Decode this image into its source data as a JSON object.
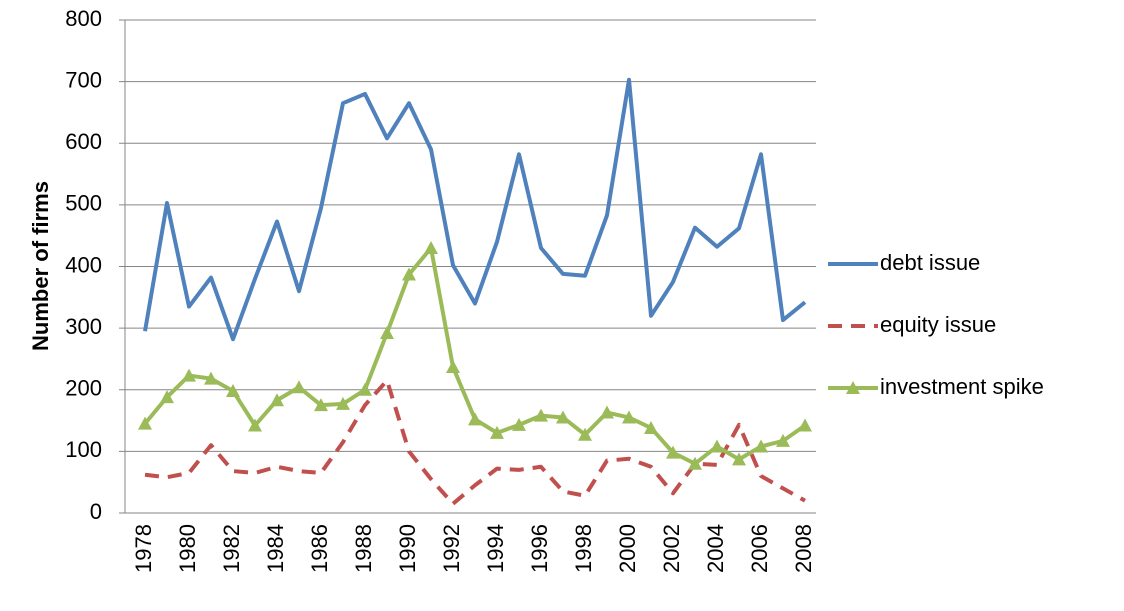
{
  "chart_data": {
    "type": "line",
    "y_label": "Number of firms",
    "x": [
      1978,
      1979,
      1980,
      1981,
      1982,
      1983,
      1984,
      1985,
      1986,
      1987,
      1988,
      1989,
      1990,
      1991,
      1992,
      1993,
      1994,
      1995,
      1996,
      1997,
      1998,
      1999,
      2000,
      2001,
      2002,
      2003,
      2004,
      2005,
      2006,
      2007,
      2008
    ],
    "xlim": [
      1977.5,
      2008.5
    ],
    "xticks": [
      1978,
      1980,
      1982,
      1984,
      1986,
      1988,
      1990,
      1992,
      1994,
      1996,
      1998,
      2000,
      2002,
      2004,
      2006,
      2008
    ],
    "ylim": [
      0,
      800
    ],
    "yticks": [
      0,
      100,
      200,
      300,
      400,
      500,
      600,
      700,
      800
    ],
    "grid": true,
    "series": [
      {
        "name": "debt issue",
        "color": "#4f81bd",
        "dash": false,
        "marker": false,
        "values": [
          295,
          503,
          335,
          382,
          282,
          380,
          473,
          360,
          495,
          665,
          680,
          608,
          665,
          590,
          402,
          340,
          440,
          582,
          430,
          388,
          385,
          483,
          703,
          320,
          375,
          463,
          432,
          462,
          582,
          313,
          342
        ]
      },
      {
        "name": "equity issue",
        "color": "#c0504d",
        "dash": true,
        "marker": false,
        "values": [
          62,
          58,
          65,
          110,
          68,
          65,
          75,
          68,
          65,
          115,
          175,
          215,
          100,
          55,
          15,
          45,
          72,
          70,
          75,
          35,
          28,
          85,
          88,
          75,
          32,
          80,
          78,
          143,
          60,
          40,
          20
        ]
      },
      {
        "name": "investment spike",
        "color": "#9bbb59",
        "dash": false,
        "marker": true,
        "values": [
          145,
          188,
          223,
          218,
          198,
          142,
          183,
          204,
          175,
          177,
          200,
          292,
          387,
          430,
          237,
          152,
          130,
          143,
          158,
          155,
          127,
          163,
          155,
          138,
          98,
          80,
          108,
          87,
          108,
          117,
          142
        ]
      }
    ]
  }
}
